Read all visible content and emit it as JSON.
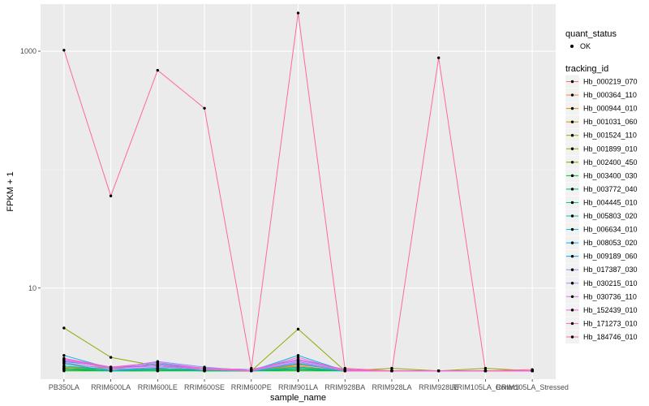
{
  "chart_data": {
    "type": "line",
    "xlabel": "sample_name",
    "ylabel": "FPKM + 1",
    "y_scale": "log10",
    "ylim": [
      1.7,
      2500
    ],
    "y_ticks": [
      {
        "value": 10,
        "label": "10"
      },
      {
        "value": 1000,
        "label": "1000"
      }
    ],
    "categories": [
      "PB350LA",
      "RRIM600LA",
      "RRIM600LE",
      "RRIM600SE",
      "RRIM600PE",
      "RRIM901LA",
      "RRIM928BA",
      "RRIM928LA",
      "RRIM928LE",
      "RRIM105LA_Control",
      "RRIM105LA_Stressed"
    ],
    "grid": true,
    "point_color": "#000000",
    "quant_status_legend": {
      "title": "quant_status",
      "label": "OK"
    },
    "legend_title": "tracking_id",
    "legend_position": "right",
    "series": [
      {
        "name": "Hb_000219_070",
        "color": "#F8766D",
        "values": [
          2.2,
          2.05,
          2.1,
          2.05,
          2.0,
          2.3,
          2.0,
          2.0,
          2.0,
          2.0,
          2.0
        ]
      },
      {
        "name": "Hb_000364_110",
        "color": "#EC8239",
        "values": [
          2.1,
          2.0,
          2.05,
          2.0,
          2.0,
          2.2,
          2.0,
          2.0,
          2.0,
          2.0,
          2.0
        ]
      },
      {
        "name": "Hb_000944_010",
        "color": "#DB8E00",
        "values": [
          2.15,
          2.05,
          2.05,
          2.0,
          2.0,
          2.15,
          2.0,
          2.0,
          2.0,
          2.0,
          2.0
        ]
      },
      {
        "name": "Hb_001031_060",
        "color": "#C79800",
        "values": [
          2.05,
          2.0,
          2.1,
          2.05,
          2.0,
          2.1,
          2.0,
          2.0,
          2.0,
          2.0,
          2.0
        ]
      },
      {
        "name": "Hb_001524_110",
        "color": "#AEA200",
        "values": [
          2.3,
          2.1,
          2.05,
          2.05,
          2.0,
          2.25,
          2.05,
          2.0,
          2.0,
          2.0,
          2.0
        ]
      },
      {
        "name": "Hb_001899_010",
        "color": "#8FAA00",
        "values": [
          4.6,
          2.6,
          2.2,
          2.1,
          2.0,
          4.5,
          2.0,
          2.1,
          2.0,
          2.1,
          2.0
        ]
      },
      {
        "name": "Hb_002400_450",
        "color": "#64B200",
        "values": [
          2.1,
          2.0,
          2.05,
          2.0,
          2.0,
          2.05,
          2.0,
          2.0,
          2.0,
          2.0,
          2.0
        ]
      },
      {
        "name": "Hb_003400_030",
        "color": "#00B81B",
        "values": [
          2.0,
          2.0,
          2.0,
          2.0,
          2.0,
          2.0,
          2.0,
          2.0,
          2.0,
          2.0,
          2.0
        ]
      },
      {
        "name": "Hb_003772_040",
        "color": "#00BD5C",
        "values": [
          2.05,
          2.0,
          2.0,
          2.05,
          2.0,
          2.05,
          2.0,
          2.0,
          2.0,
          2.0,
          2.0
        ]
      },
      {
        "name": "Hb_004445_010",
        "color": "#00C08B",
        "values": [
          2.1,
          2.05,
          2.05,
          2.0,
          2.0,
          2.1,
          2.0,
          2.0,
          2.0,
          2.0,
          2.0
        ]
      },
      {
        "name": "Hb_005803_020",
        "color": "#00BFB2",
        "values": [
          2.2,
          2.05,
          2.1,
          2.05,
          2.0,
          2.15,
          2.0,
          2.0,
          2.0,
          2.0,
          2.0
        ]
      },
      {
        "name": "Hb_006634_010",
        "color": "#00BBDB",
        "values": [
          2.3,
          2.0,
          2.1,
          2.05,
          2.0,
          2.3,
          2.0,
          2.0,
          2.0,
          2.0,
          2.0
        ]
      },
      {
        "name": "Hb_008053_020",
        "color": "#00B2F3",
        "values": [
          2.7,
          2.1,
          2.3,
          2.1,
          2.0,
          2.7,
          2.0,
          2.0,
          2.0,
          2.0,
          2.0
        ]
      },
      {
        "name": "Hb_009189_060",
        "color": "#00A5FF",
        "values": [
          2.4,
          2.15,
          2.2,
          2.1,
          2.05,
          2.5,
          2.05,
          2.0,
          2.0,
          2.0,
          2.0
        ]
      },
      {
        "name": "Hb_017387_030",
        "color": "#7997FF",
        "values": [
          2.5,
          2.1,
          2.4,
          2.15,
          2.0,
          2.4,
          2.0,
          2.0,
          2.0,
          2.0,
          2.0
        ]
      },
      {
        "name": "Hb_030215_010",
        "color": "#BB83FF",
        "values": [
          2.35,
          2.05,
          2.15,
          2.1,
          2.0,
          2.35,
          2.0,
          2.0,
          2.0,
          2.0,
          2.0
        ]
      },
      {
        "name": "Hb_030736_110",
        "color": "#E36EF6",
        "values": [
          2.45,
          2.1,
          2.2,
          2.05,
          2.0,
          2.5,
          2.0,
          2.0,
          2.0,
          2.0,
          2.0
        ]
      },
      {
        "name": "Hb_152439_010",
        "color": "#F863DF",
        "values": [
          2.5,
          2.15,
          2.35,
          2.1,
          2.05,
          2.45,
          2.05,
          2.0,
          2.0,
          2.0,
          2.0
        ]
      },
      {
        "name": "Hb_171273_010",
        "color": "#FF62BC",
        "values": [
          2.55,
          2.15,
          2.25,
          2.1,
          2.0,
          2.6,
          2.0,
          2.0,
          2.0,
          2.0,
          2.0
        ]
      },
      {
        "name": "Hb_184746_010",
        "color": "#FF6A98",
        "values": [
          1020,
          60,
          690,
          330,
          2.1,
          2100,
          2.1,
          2.0,
          880,
          2.0,
          2.05
        ]
      }
    ]
  }
}
